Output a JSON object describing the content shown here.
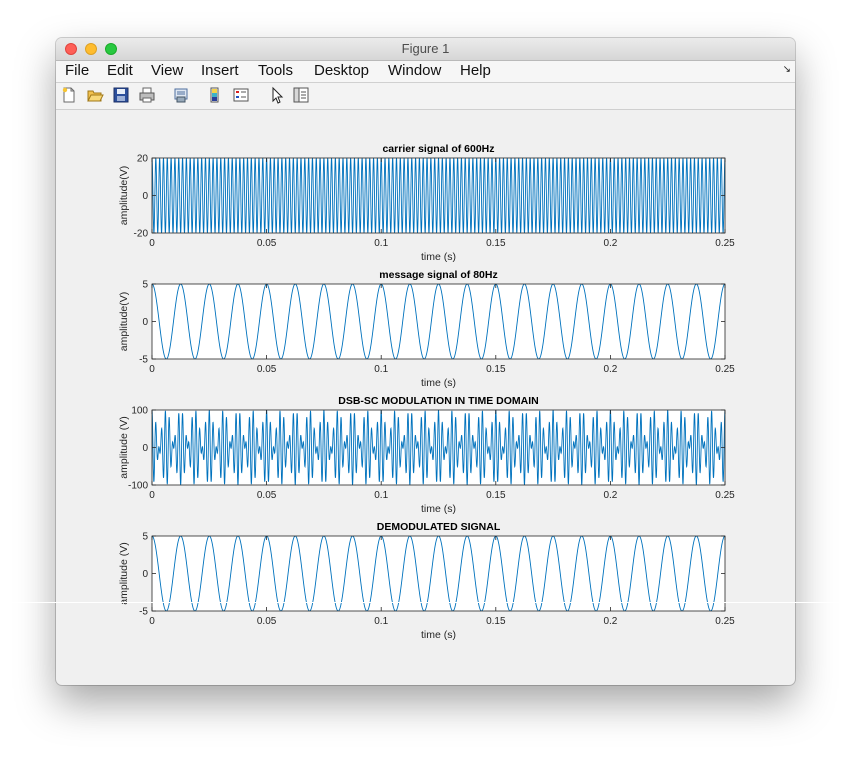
{
  "window": {
    "title": "Figure 1"
  },
  "menu": [
    "File",
    "Edit",
    "View",
    "Insert",
    "Tools",
    "Desktop",
    "Window",
    "Help"
  ],
  "toolbar_icons": [
    "new-figure-icon",
    "open-file-icon",
    "save-icon",
    "print-icon",
    "print-preview-icon",
    "colorbar-icon",
    "legend-icon",
    "pointer-icon",
    "property-editor-icon"
  ],
  "colors": {
    "line": "#0072bd",
    "axes_bg": "#ffffff",
    "figure_bg": "#f0f0f0"
  },
  "chart_data": [
    {
      "type": "line",
      "title": "carrier signal of 600Hz",
      "xlabel": "time (s)",
      "ylabel": "amplitude(V)",
      "xlim": [
        0,
        0.25
      ],
      "ylim": [
        -20,
        20
      ],
      "xticks": [
        "0",
        "0.05",
        "0.1",
        "0.15",
        "0.2",
        "0.25"
      ],
      "yticks": [
        "-20",
        "0",
        "20"
      ],
      "series": [
        {
          "function": "20*cos(2*pi*600*t)",
          "amplitude": 20,
          "frequency_hz": 600
        }
      ]
    },
    {
      "type": "line",
      "title": "message signal of 80Hz",
      "xlabel": "time (s)",
      "ylabel": "amplitude(V)",
      "xlim": [
        0,
        0.25
      ],
      "ylim": [
        -5,
        5
      ],
      "xticks": [
        "0",
        "0.05",
        "0.1",
        "0.15",
        "0.2",
        "0.25"
      ],
      "yticks": [
        "-5",
        "0",
        "5"
      ],
      "series": [
        {
          "function": "5*cos(2*pi*80*t)",
          "amplitude": 5,
          "frequency_hz": 80
        }
      ]
    },
    {
      "type": "line",
      "title": "DSB-SC MODULATION IN TIME DOMAIN",
      "xlabel": "time (s)",
      "ylabel": "amplitude (V)",
      "xlim": [
        0,
        0.25
      ],
      "ylim": [
        -100,
        100
      ],
      "xticks": [
        "0",
        "0.05",
        "0.1",
        "0.15",
        "0.2",
        "0.25"
      ],
      "yticks": [
        "-100",
        "0",
        "100"
      ],
      "series": [
        {
          "function": "100*cos(2*pi*80*t)*cos(2*pi*600*t)",
          "amplitude": 100,
          "message_hz": 80,
          "carrier_hz": 600
        }
      ]
    },
    {
      "type": "line",
      "title": "DEMODULATED SIGNAL",
      "xlabel": "time (s)",
      "ylabel": "amplitude (V)",
      "xlim": [
        0,
        0.25
      ],
      "ylim": [
        -5,
        5
      ],
      "xticks": [
        "0",
        "0.05",
        "0.1",
        "0.15",
        "0.2",
        "0.25"
      ],
      "yticks": [
        "-5",
        "0",
        "5"
      ],
      "series": [
        {
          "function": "5*cos(2*pi*80*t)",
          "amplitude": 5,
          "frequency_hz": 80
        }
      ]
    }
  ]
}
